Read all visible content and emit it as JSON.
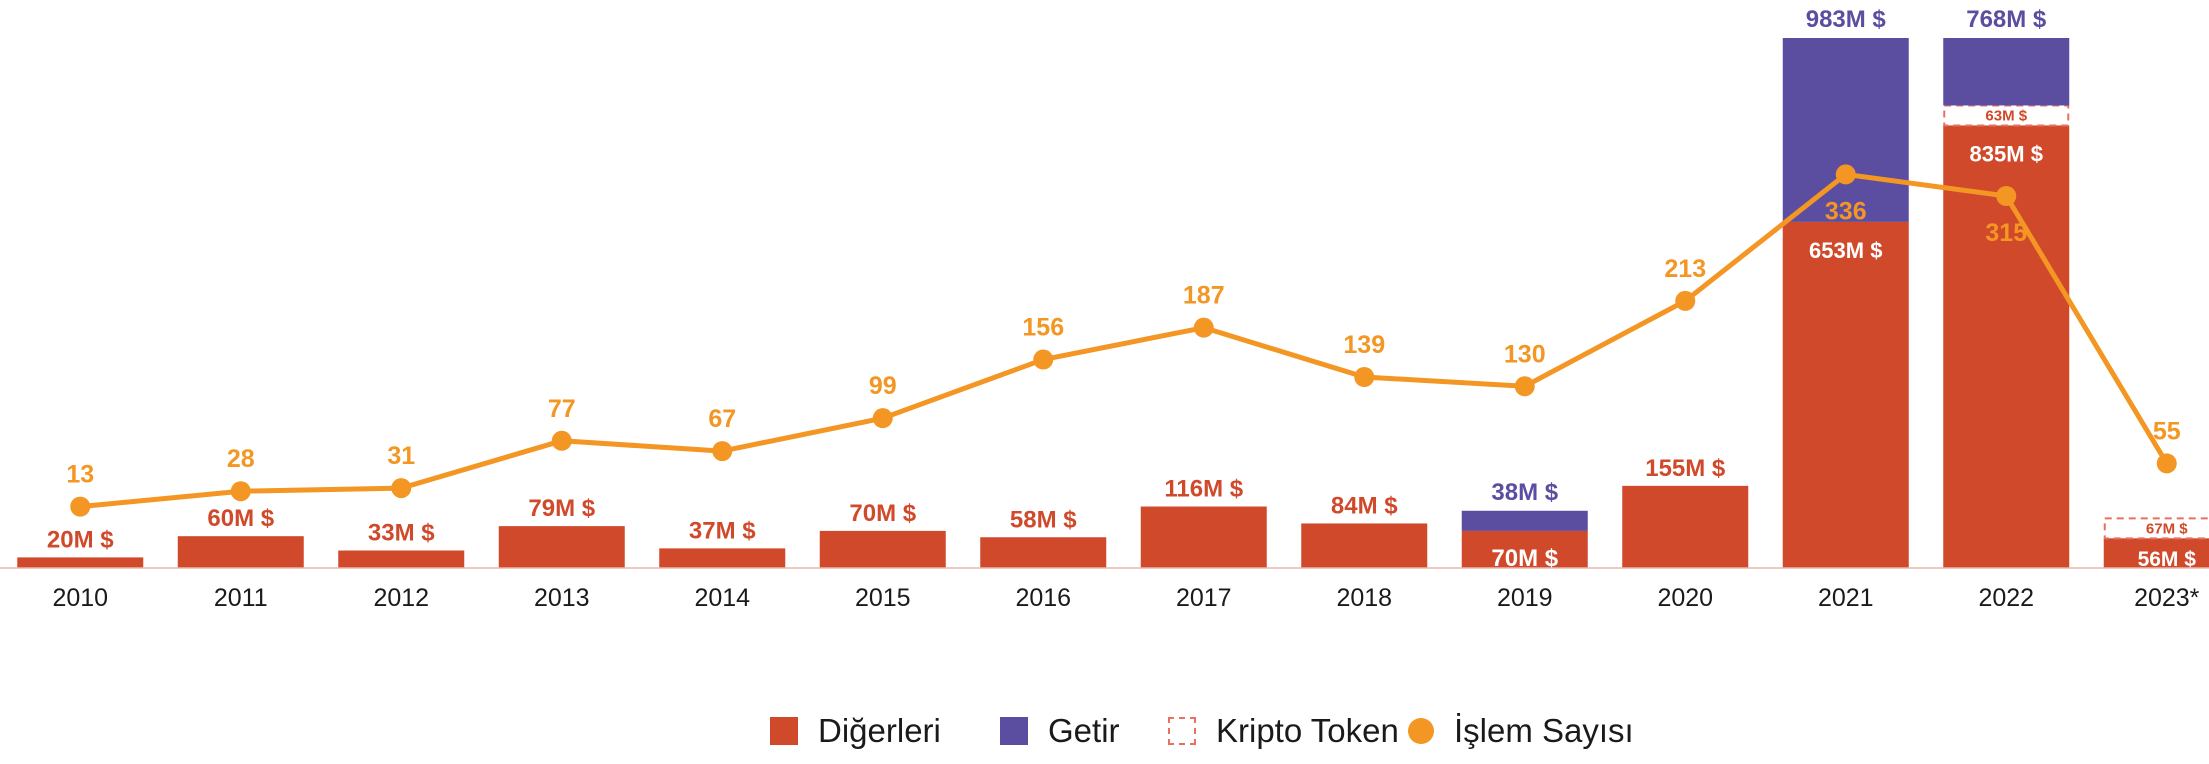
{
  "colors": {
    "other": "#d0492a",
    "getir": "#5b4d9f",
    "crypto": "#e87060",
    "count": "#f39623",
    "axis_text": "#1a1a1a"
  },
  "chart_data": {
    "type": "bar",
    "stacked": true,
    "categories": [
      "2010",
      "2011",
      "2012",
      "2013",
      "2014",
      "2015",
      "2016",
      "2017",
      "2018",
      "2019",
      "2020",
      "2021",
      "2022",
      "2023*"
    ],
    "series": [
      {
        "name": "Diğerleri",
        "color": "#d0492a",
        "values": [
          20,
          60,
          33,
          79,
          37,
          70,
          58,
          116,
          84,
          70,
          155,
          653,
          835,
          56
        ],
        "labels": [
          "20M $",
          "60M $",
          "33M $",
          "79M $",
          "37M $",
          "70M $",
          "58M $",
          "116M $",
          "84M $",
          "70M $",
          "155M $",
          "653M $",
          "835M $",
          "56M $"
        ]
      },
      {
        "name": "Kripto Token",
        "color": "#e87060",
        "style": "dashed-outline",
        "values": [
          null,
          null,
          null,
          null,
          null,
          null,
          null,
          null,
          null,
          null,
          null,
          null,
          63,
          67
        ],
        "labels": [
          null,
          null,
          null,
          null,
          null,
          null,
          null,
          null,
          null,
          null,
          null,
          null,
          "63M $",
          "67M $"
        ]
      },
      {
        "name": "Getir",
        "color": "#5b4d9f",
        "values": [
          null,
          null,
          null,
          null,
          null,
          null,
          null,
          null,
          null,
          38,
          null,
          983,
          768,
          null
        ],
        "labels": [
          null,
          null,
          null,
          null,
          null,
          null,
          null,
          null,
          null,
          "38M $",
          null,
          "983M $",
          "768M $",
          null
        ]
      }
    ],
    "line_series": {
      "name": "İşlem Sayısı",
      "color": "#f39623",
      "values": [
        13,
        28,
        31,
        77,
        67,
        99,
        156,
        187,
        139,
        130,
        213,
        336,
        315,
        55
      ]
    },
    "legend": {
      "placement": "bottom-center",
      "items": [
        {
          "label": "Diğerleri",
          "kind": "square",
          "color": "#d0492a"
        },
        {
          "label": "Getir",
          "kind": "square",
          "color": "#5b4d9f"
        },
        {
          "label": "Kripto Token",
          "kind": "dashed-square",
          "color": "#e87060"
        },
        {
          "label": "İşlem Sayısı",
          "kind": "dot",
          "color": "#f39623"
        }
      ]
    },
    "bar_axis_clipped_at": 1000,
    "grid": false
  }
}
